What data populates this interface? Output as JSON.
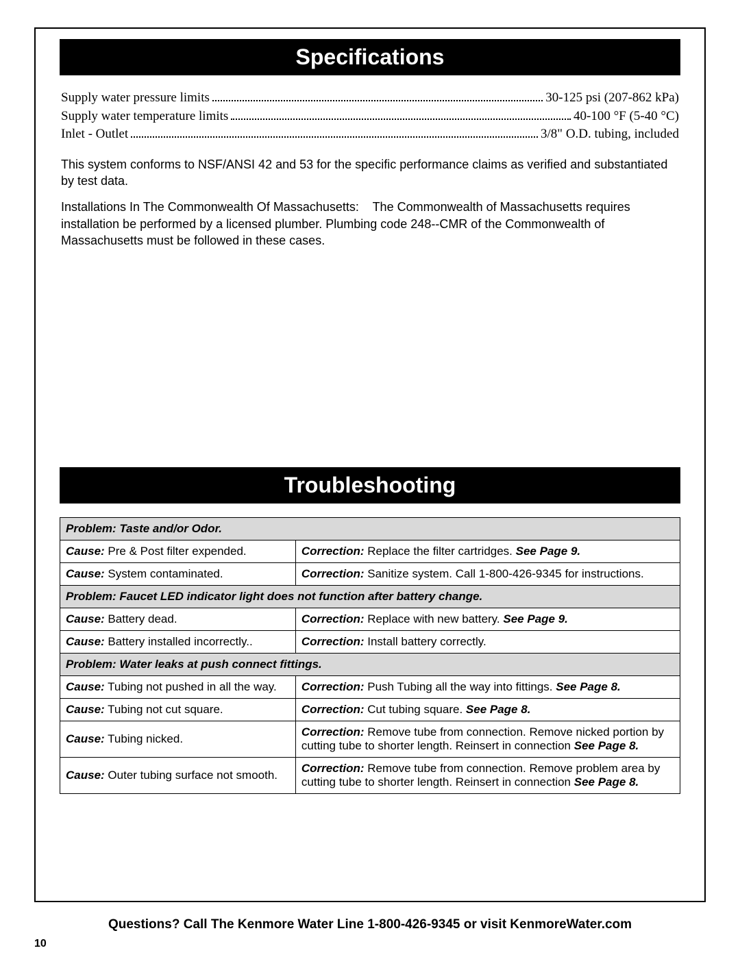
{
  "colors": {
    "header_bg": "#000000",
    "header_fg": "#ffffff",
    "problem_bg": "#d9d9d9",
    "border": "#000000",
    "page_bg": "#ffffff"
  },
  "fonts": {
    "heading_family": "Arial",
    "heading_size_pt": 24,
    "spec_family": "Georgia",
    "spec_size_pt": 14,
    "body_family": "Arial",
    "body_size_pt": 13
  },
  "sections": {
    "specifications": {
      "title": "Specifications",
      "rows": [
        {
          "label": "Supply water pressure limits",
          "value": "30-125 psi (207-862 kPa)"
        },
        {
          "label": "Supply water temperature limits",
          "value": "40-100 °F (5-40 °C)"
        },
        {
          "label": "Inlet - Outlet",
          "value": "3/8\" O.D. tubing, included"
        }
      ],
      "conformance": "This system conforms to NSF/ANSI 42 and 53 for the specific performance claims as verified and substantiated by test data.",
      "mass_title": "Installations In The Commonwealth Of Massachusetts:",
      "mass_body": "The Commonwealth of Massachusetts requires installation be performed by a licensed plumber. Plumbing code 248--CMR of the Commonwealth of Massachusetts must be followed in these cases."
    },
    "troubleshooting": {
      "title": "Troubleshooting",
      "cause_label": "Cause:",
      "correction_label": "Correction:",
      "problems": [
        {
          "title": "Problem: Taste and/or Odor.",
          "items": [
            {
              "cause": "Pre & Post filter expended.",
              "correction": "Replace the filter cartridges.",
              "see": "See Page 9."
            },
            {
              "cause": "System contaminated.",
              "correction": "Sanitize system.  Call 1-800-426-9345 for instructions.",
              "see": ""
            }
          ]
        },
        {
          "title": "Problem: Faucet LED indicator light does not function after battery change.",
          "items": [
            {
              "cause": "Battery dead.",
              "correction": "Replace with new battery.",
              "see": "See Page 9."
            },
            {
              "cause": "Battery installed incorrectly..",
              "correction": "Install battery correctly.",
              "see": ""
            }
          ]
        },
        {
          "title": "Problem: Water leaks at push connect fittings.",
          "items": [
            {
              "cause": "Tubing not pushed in all the way.",
              "correction": "Push Tubing all the way into fittings.",
              "see": "See Page 8."
            },
            {
              "cause": "Tubing not cut square.",
              "correction": "Cut tubing square.",
              "see": "See Page 8."
            },
            {
              "cause": "Tubing nicked.",
              "correction": "Remove tube from connection.  Remove nicked portion by cutting tube to shorter length.  Reinsert in connection",
              "see": "See Page 8."
            },
            {
              "cause": "Outer tubing surface not smooth.",
              "correction": "Remove tube from connection.  Remove problem area by cutting tube to shorter length.  Reinsert in connection",
              "see": "See Page 8."
            }
          ]
        }
      ]
    }
  },
  "footer": "Questions? Call The Kenmore Water Line 1-800-426-9345 or visit KenmoreWater.com",
  "page_number": "10"
}
